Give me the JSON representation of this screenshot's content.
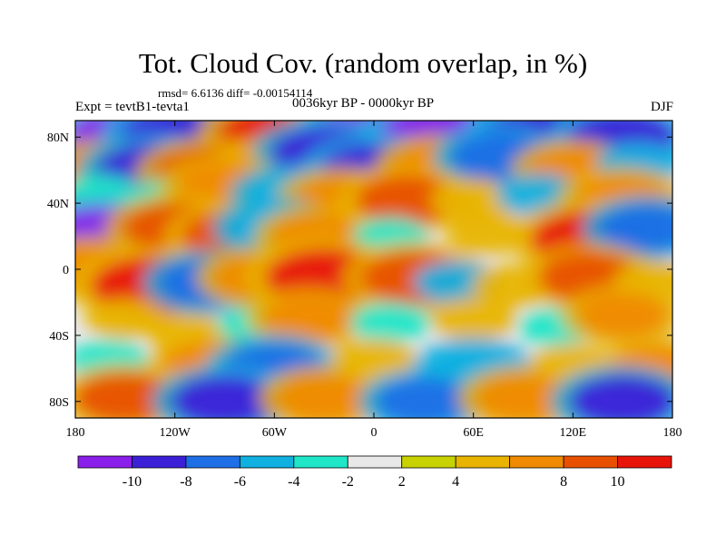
{
  "header": {
    "title": "Tot. Cloud Cov. (random overlap, in %)",
    "stats": "rmsd= 6.6136 diff= -0.00154114",
    "experiment": "Expt = tevtB1-tevta1",
    "period": "0036kyr BP - 0000kyr BP",
    "season": "DJF"
  },
  "chart_data": {
    "type": "heatmap",
    "projection": "cylindrical-equidistant",
    "xlim": [
      -180,
      180
    ],
    "ylim": [
      -90,
      90
    ],
    "x_ticks": [
      {
        "value": -180,
        "label": "180"
      },
      {
        "value": -120,
        "label": "120W"
      },
      {
        "value": -60,
        "label": "60W"
      },
      {
        "value": 0,
        "label": "0"
      },
      {
        "value": 60,
        "label": "60E"
      },
      {
        "value": 120,
        "label": "120E"
      },
      {
        "value": 180,
        "label": "180"
      }
    ],
    "y_ticks": [
      {
        "value": 80,
        "label": "80N"
      },
      {
        "value": 40,
        "label": "40N"
      },
      {
        "value": 0,
        "label": "0"
      },
      {
        "value": -40,
        "label": "40S"
      },
      {
        "value": -80,
        "label": "80S"
      }
    ],
    "colorbar": {
      "levels": [
        -10,
        -8,
        -6,
        -4,
        -2,
        2,
        4,
        6,
        8,
        10
      ],
      "labels": [
        "-10",
        "-8",
        "-6",
        "-4",
        "-2",
        "2",
        "4",
        "8",
        "10"
      ],
      "label_levels": [
        -10,
        -8,
        -6,
        -4,
        -2,
        2,
        4,
        8,
        10
      ],
      "colors": [
        "#8a1eea",
        "#3c20d8",
        "#1e6ee6",
        "#10b0e0",
        "#20e6c8",
        "#e8e8e8",
        "#c8d200",
        "#e8b400",
        "#f08a00",
        "#e85000",
        "#e8140a"
      ]
    },
    "features": [
      {
        "lon": -150,
        "lat": 80,
        "value": -11
      },
      {
        "lon": -120,
        "lat": 82,
        "value": -9
      },
      {
        "lon": -60,
        "lat": 82,
        "value": 10
      },
      {
        "lon": -15,
        "lat": 80,
        "value": 8
      },
      {
        "lon": 0,
        "lat": 84,
        "value": -11
      },
      {
        "lon": 40,
        "lat": 82,
        "value": -11
      },
      {
        "lon": 100,
        "lat": 82,
        "value": -10
      },
      {
        "lon": 150,
        "lat": 80,
        "value": -9
      },
      {
        "lon": -165,
        "lat": 60,
        "value": 6
      },
      {
        "lon": -135,
        "lat": 60,
        "value": -9
      },
      {
        "lon": -100,
        "lat": 58,
        "value": 9
      },
      {
        "lon": -60,
        "lat": 62,
        "value": 6
      },
      {
        "lon": -30,
        "lat": 70,
        "value": -9
      },
      {
        "lon": 0,
        "lat": 60,
        "value": -9
      },
      {
        "lon": 40,
        "lat": 62,
        "value": 7
      },
      {
        "lon": 75,
        "lat": 68,
        "value": -7
      },
      {
        "lon": 120,
        "lat": 60,
        "value": 6
      },
      {
        "lon": 160,
        "lat": 64,
        "value": -5
      },
      {
        "lon": -165,
        "lat": 45,
        "value": -4
      },
      {
        "lon": -120,
        "lat": 44,
        "value": -4
      },
      {
        "lon": -90,
        "lat": 50,
        "value": 7
      },
      {
        "lon": -50,
        "lat": 45,
        "value": -6
      },
      {
        "lon": -20,
        "lat": 42,
        "value": 7
      },
      {
        "lon": 20,
        "lat": 42,
        "value": 8
      },
      {
        "lon": 60,
        "lat": 42,
        "value": 5
      },
      {
        "lon": 100,
        "lat": 45,
        "value": -5
      },
      {
        "lon": 150,
        "lat": 42,
        "value": 7
      },
      {
        "lon": -165,
        "lat": 20,
        "value": -11
      },
      {
        "lon": -120,
        "lat": 25,
        "value": 8
      },
      {
        "lon": -85,
        "lat": 20,
        "value": 8
      },
      {
        "lon": -60,
        "lat": 25,
        "value": -6
      },
      {
        "lon": -35,
        "lat": 20,
        "value": 6
      },
      {
        "lon": 10,
        "lat": 20,
        "value": -3
      },
      {
        "lon": 70,
        "lat": 22,
        "value": 5
      },
      {
        "lon": 130,
        "lat": 18,
        "value": 11
      },
      {
        "lon": 165,
        "lat": 25,
        "value": -7
      },
      {
        "lon": -170,
        "lat": 0,
        "value": 7
      },
      {
        "lon": -135,
        "lat": -10,
        "value": 11
      },
      {
        "lon": -100,
        "lat": -8,
        "value": -7
      },
      {
        "lon": -70,
        "lat": -5,
        "value": 6
      },
      {
        "lon": -30,
        "lat": -5,
        "value": 11
      },
      {
        "lon": 25,
        "lat": -5,
        "value": 9
      },
      {
        "lon": 50,
        "lat": -8,
        "value": -5
      },
      {
        "lon": 85,
        "lat": -10,
        "value": 5
      },
      {
        "lon": 130,
        "lat": -5,
        "value": 8
      },
      {
        "lon": 170,
        "lat": -8,
        "value": 5
      },
      {
        "lon": -150,
        "lat": -30,
        "value": 4
      },
      {
        "lon": -110,
        "lat": -40,
        "value": 5
      },
      {
        "lon": -70,
        "lat": -35,
        "value": -4
      },
      {
        "lon": -40,
        "lat": -30,
        "value": 6
      },
      {
        "lon": 10,
        "lat": -32,
        "value": -4
      },
      {
        "lon": 60,
        "lat": -30,
        "value": 5
      },
      {
        "lon": 110,
        "lat": -35,
        "value": -3
      },
      {
        "lon": 150,
        "lat": -28,
        "value": 6
      },
      {
        "lon": -160,
        "lat": -55,
        "value": -4
      },
      {
        "lon": -100,
        "lat": -58,
        "value": 6
      },
      {
        "lon": -60,
        "lat": -60,
        "value": -8
      },
      {
        "lon": 0,
        "lat": -55,
        "value": 5
      },
      {
        "lon": 60,
        "lat": -60,
        "value": -6
      },
      {
        "lon": 120,
        "lat": -58,
        "value": 5
      },
      {
        "lon": 170,
        "lat": -60,
        "value": 6
      },
      {
        "lon": -150,
        "lat": -78,
        "value": 8
      },
      {
        "lon": -90,
        "lat": -80,
        "value": -9
      },
      {
        "lon": -30,
        "lat": -78,
        "value": 7
      },
      {
        "lon": 30,
        "lat": -80,
        "value": -7
      },
      {
        "lon": 90,
        "lat": -78,
        "value": 7
      },
      {
        "lon": 150,
        "lat": -80,
        "value": -9
      }
    ]
  }
}
